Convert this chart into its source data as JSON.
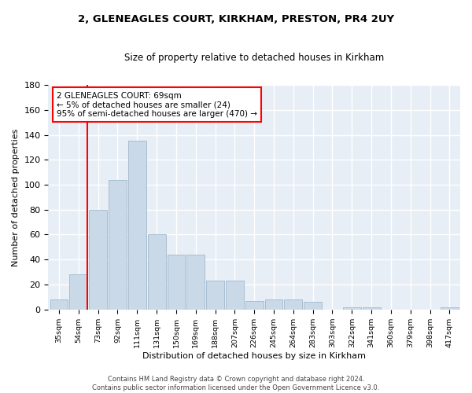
{
  "title1": "2, GLENEAGLES COURT, KIRKHAM, PRESTON, PR4 2UY",
  "title2": "Size of property relative to detached houses in Kirkham",
  "xlabel": "Distribution of detached houses by size in Kirkham",
  "ylabel": "Number of detached properties",
  "bar_values": [
    8,
    28,
    80,
    104,
    135,
    60,
    44,
    44,
    23,
    23,
    7,
    8,
    8,
    6,
    0,
    2,
    2,
    0,
    0,
    0,
    2
  ],
  "bin_labels": [
    "35sqm",
    "54sqm",
    "73sqm",
    "92sqm",
    "111sqm",
    "131sqm",
    "150sqm",
    "169sqm",
    "188sqm",
    "207sqm",
    "226sqm",
    "245sqm",
    "264sqm",
    "283sqm",
    "303sqm",
    "322sqm",
    "341sqm",
    "360sqm",
    "379sqm",
    "398sqm",
    "417sqm"
  ],
  "bar_color": "#c9d9e8",
  "bar_edge_color": "#a0b8cc",
  "background_color": "#e8eef5",
  "grid_color": "#ffffff",
  "annotation_text": "2 GLENEAGLES COURT: 69sqm\n← 5% of detached houses are smaller (24)\n95% of semi-detached houses are larger (470) →",
  "footer": "Contains HM Land Registry data © Crown copyright and database right 2024.\nContains public sector information licensed under the Open Government Licence v3.0.",
  "ylim": [
    0,
    180
  ],
  "yticks": [
    0,
    20,
    40,
    60,
    80,
    100,
    120,
    140,
    160,
    180
  ],
  "fig_bg": "#ffffff"
}
